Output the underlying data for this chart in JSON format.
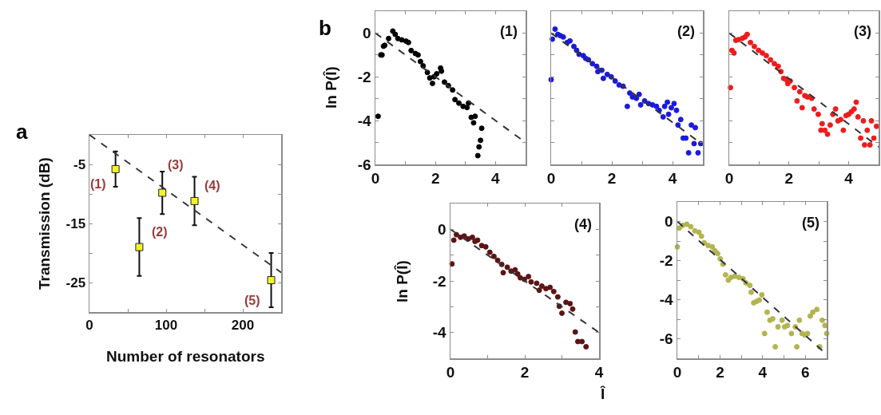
{
  "chart_data": [
    {
      "type": "scatter",
      "title": "a",
      "xlabel": "Number of resonators",
      "ylabel": "Transmission (dB)",
      "xlim": [
        0,
        250
      ],
      "ylim": [
        -30,
        0
      ],
      "xticks": [
        0,
        {
          "value": 50,
          "label": null
        },
        100,
        {
          "value": 150,
          "label": null
        },
        200,
        {
          "value": 250,
          "label": null
        }
      ],
      "yticks": [
        {
          "value": -30,
          "label": null
        },
        -25,
        {
          "value": -20,
          "label": null
        },
        -15,
        {
          "value": -10,
          "label": null
        },
        -5
      ],
      "marker": "square",
      "series": [
        {
          "type": "scatter",
          "color": "#f2f230",
          "x": [
            34,
            65,
            95,
            137,
            237
          ],
          "values": [
            -5.8,
            -19.0,
            -9.8,
            -11.2,
            -24.6
          ],
          "errors": [
            3,
            4.9,
            3.6,
            4.1,
            4.6
          ]
        },
        {
          "type": "line",
          "color": "#333344",
          "line_style": "dashed",
          "marker": "none",
          "x": [
            0,
            250
          ],
          "values": [
            0,
            -23.3
          ]
        }
      ],
      "annotations": [
        "(1)",
        "(2)",
        "(3)",
        "(4)",
        "(5)"
      ]
    },
    {
      "type": "scatter",
      "title": "b",
      "ylabel": "ln P(Î)",
      "xlim": [
        0,
        5
      ],
      "ylim": [
        -6,
        1
      ],
      "xticks": [
        0,
        {
          "value": 1,
          "label": null
        },
        2,
        {
          "value": 3,
          "label": null
        },
        4
      ],
      "yticks": [
        -6,
        {
          "value": -5,
          "label": null
        },
        -4,
        {
          "value": -3,
          "label": null
        },
        -2,
        {
          "value": -1,
          "label": null
        },
        0
      ],
      "marker": "circle",
      "series": [
        {
          "type": "scatter",
          "color": "#000000",
          "x": [
            0.09,
            0.18,
            0.22,
            0.27,
            0.31,
            0.44,
            0.58,
            0.66,
            0.75,
            0.88,
            1.02,
            1.1,
            1.19,
            1.33,
            1.42,
            1.5,
            1.59,
            1.73,
            1.81,
            1.9,
            1.95,
            2.04,
            2.17,
            2.2,
            2.3,
            2.43,
            2.57,
            2.65,
            2.78,
            2.92,
            3.05,
            3.1,
            3.19,
            3.27,
            3.32,
            3.41,
            3.45,
            3.5,
            3.54
          ],
          "values": [
            -3.8,
            -1.0,
            -1.0,
            -0.6,
            -0.56,
            -0.25,
            0.09,
            -0.06,
            -0.25,
            -0.31,
            -0.37,
            -0.43,
            -0.8,
            -0.93,
            -1.0,
            -1.3,
            -1.5,
            -1.8,
            -2.05,
            -2.3,
            -2.0,
            -1.86,
            -1.6,
            -1.74,
            -2.24,
            -2.4,
            -2.6,
            -3.04,
            -3.2,
            -3.35,
            -3.4,
            -3.2,
            -3.85,
            -4.1,
            -3.8,
            -5.6,
            -5.2,
            -4.9,
            -4.35
          ]
        },
        {
          "type": "line",
          "color": "#333333",
          "line_style": "dashed",
          "marker": "none",
          "x": [
            0,
            5
          ],
          "values": [
            0,
            -5
          ]
        }
      ],
      "annotations": [
        "(1)"
      ]
    },
    {
      "type": "scatter",
      "tick_labels": "x",
      "xlim": [
        0,
        5
      ],
      "ylim": [
        -6,
        1
      ],
      "xticks": [
        0,
        {
          "value": 1,
          "label": null
        },
        2,
        {
          "value": 3,
          "label": null
        },
        4
      ],
      "yticks": [
        -6,
        -5,
        -4,
        -3,
        -2,
        -1,
        0
      ],
      "marker": "circle",
      "series": [
        {
          "type": "scatter",
          "color": "#1a1adc",
          "x": [
            0,
            0.04,
            0.13,
            0.22,
            0.31,
            0.4,
            0.53,
            0.62,
            0.75,
            0.84,
            0.92,
            1.06,
            1.14,
            1.23,
            1.36,
            1.5,
            1.54,
            1.67,
            1.72,
            1.85,
            1.98,
            2.11,
            2.24,
            2.37,
            2.51,
            2.59,
            2.68,
            2.81,
            2.9,
            2.95,
            3.08,
            3.21,
            3.34,
            3.47,
            3.56,
            3.69,
            3.74,
            3.83,
            3.87,
            3.96,
            4.05,
            4.13,
            4.18,
            4.27,
            4.35,
            4.44,
            4.53,
            4.62,
            4.71,
            4.75,
            4.84,
            4.93
          ],
          "values": [
            -2.13,
            -0.28,
            0.18,
            -0.06,
            -0.12,
            -0.18,
            -0.43,
            -0.36,
            -0.61,
            -0.79,
            -0.97,
            -1.03,
            -1.16,
            -1.22,
            -1.4,
            -1.52,
            -1.76,
            -1.7,
            -2.07,
            -1.89,
            -2.0,
            -2.19,
            -2.37,
            -2.43,
            -3.35,
            -2.74,
            -2.92,
            -2.98,
            -2.8,
            -3.28,
            -3.1,
            -3.22,
            -3.28,
            -3.35,
            -3.53,
            -3.83,
            -3.35,
            -3.16,
            -3.71,
            -3.41,
            -3.22,
            -3.53,
            -4.2,
            -3.95,
            -4.8,
            -4.8,
            -5.47,
            -4.2,
            -5.05,
            -4.32,
            -5.47,
            -5.05
          ]
        },
        {
          "type": "line",
          "color": "#333333",
          "line_style": "dashed",
          "marker": "none",
          "x": [
            0,
            5
          ],
          "values": [
            0,
            -5.1
          ]
        }
      ],
      "annotations": [
        "(2)"
      ]
    },
    {
      "type": "scatter",
      "tick_labels": "x",
      "xlim": [
        0,
        5
      ],
      "ylim": [
        -6,
        1
      ],
      "xticks": [
        0,
        {
          "value": 1,
          "label": null
        },
        2,
        {
          "value": 3,
          "label": null
        },
        4
      ],
      "yticks": [
        -6,
        -5,
        -4,
        -3,
        -2,
        -1,
        0
      ],
      "marker": "circle",
      "series": [
        {
          "type": "scatter",
          "color": "#ee1c1c",
          "x": [
            0.04,
            0.09,
            0.16,
            0.22,
            0.31,
            0.44,
            0.53,
            0.6,
            0.71,
            0.84,
            0.98,
            1.11,
            1.24,
            1.38,
            1.51,
            1.64,
            1.73,
            1.82,
            1.91,
            1.96,
            2.04,
            2.18,
            2.27,
            2.36,
            2.44,
            2.53,
            2.62,
            2.76,
            2.84,
            2.98,
            3.07,
            3.11,
            3.2,
            3.29,
            3.38,
            3.47,
            3.56,
            3.64,
            3.73,
            3.82,
            3.91,
            4.0,
            4.09,
            4.18,
            4.25,
            4.31,
            4.4,
            4.49,
            4.53,
            4.62,
            4.71,
            4.76,
            4.84,
            4.93
          ],
          "values": [
            -2.49,
            -0.79,
            -0.91,
            -0.33,
            -0.3,
            -0.24,
            -0.18,
            -0.06,
            -0.43,
            -0.61,
            -0.79,
            -0.91,
            -1.03,
            -1.22,
            -1.4,
            -1.52,
            -1.76,
            -2.07,
            -2.13,
            -2.31,
            -2.19,
            -2.49,
            -3.1,
            -2.68,
            -3.41,
            -2.86,
            -2.92,
            -2.98,
            -3.47,
            -3.71,
            -4.44,
            -4.14,
            -4.44,
            -4.62,
            -4.2,
            -3.71,
            -3.47,
            -4.01,
            -3.95,
            -4.44,
            -3.77,
            -3.71,
            -3.59,
            -3.47,
            -3.16,
            -3.83,
            -4.8,
            -4.01,
            -5.11,
            -4.44,
            -5.11,
            -4.01,
            -4.8,
            -4.26
          ]
        },
        {
          "type": "line",
          "color": "#333333",
          "line_style": "dashed",
          "marker": "none",
          "x": [
            0,
            5
          ],
          "values": [
            0,
            -5.2
          ]
        }
      ],
      "annotations": [
        "(3)"
      ]
    },
    {
      "type": "scatter",
      "xlabel": "Î",
      "ylabel": "ln P(Î)",
      "xlim": [
        0,
        4
      ],
      "ylim": [
        -5,
        1
      ],
      "xticks": [
        0,
        {
          "value": 1,
          "label": null
        },
        2,
        {
          "value": 3,
          "label": null
        },
        4
      ],
      "yticks": [
        -4,
        {
          "value": -3,
          "label": null
        },
        -2,
        {
          "value": -1,
          "label": null
        },
        0
      ],
      "marker": "circle",
      "series": [
        {
          "type": "scatter",
          "color": "#5c1414",
          "x": [
            0.04,
            0.09,
            0.16,
            0.27,
            0.37,
            0.48,
            0.59,
            0.66,
            0.73,
            0.84,
            0.95,
            1.06,
            1.17,
            1.27,
            1.38,
            1.42,
            1.53,
            1.63,
            1.74,
            1.81,
            1.88,
            1.99,
            2.1,
            2.17,
            2.32,
            2.39,
            2.46,
            2.57,
            2.68,
            2.78,
            2.89,
            2.93,
            3.0,
            3.11,
            3.22,
            3.29,
            3.36,
            3.43,
            3.54,
            3.65
          ],
          "values": [
            -1.34,
            -0.42,
            -0.21,
            -0.31,
            -0.26,
            -0.37,
            -0.31,
            -0.47,
            -0.42,
            -0.63,
            -0.68,
            -0.89,
            -1.05,
            -1.2,
            -1.36,
            -1.68,
            -1.47,
            -1.62,
            -1.57,
            -1.73,
            -1.88,
            -1.94,
            -1.83,
            -2.04,
            -2.09,
            -2.36,
            -2.2,
            -2.3,
            -2.25,
            -2.41,
            -2.62,
            -2.98,
            -3.25,
            -2.83,
            -2.88,
            -3.09,
            -3.98,
            -4.35,
            -4.35,
            -4.55
          ]
        },
        {
          "type": "line",
          "color": "#333333",
          "line_style": "dashed",
          "marker": "none",
          "x": [
            0,
            4
          ],
          "values": [
            0,
            -4
          ]
        }
      ],
      "annotations": [
        "(4)"
      ]
    },
    {
      "type": "scatter",
      "xlim": [
        0,
        7
      ],
      "ylim": [
        -7,
        1
      ],
      "xticks": [
        0,
        {
          "value": 1,
          "label": null
        },
        2,
        {
          "value": 3,
          "label": null
        },
        4,
        {
          "value": 5,
          "label": null
        },
        6
      ],
      "yticks": [
        -6,
        {
          "value": -5,
          "label": null
        },
        -4,
        {
          "value": -3,
          "label": null
        },
        -2,
        {
          "value": -1,
          "label": null
        },
        0
      ],
      "marker": "circle",
      "series": [
        {
          "type": "scatter",
          "color": "#b4b450",
          "x": [
            0,
            0.09,
            0.25,
            0.44,
            0.63,
            0.82,
            1.01,
            1.13,
            1.26,
            1.45,
            1.64,
            1.76,
            1.89,
            2.01,
            2.14,
            2.26,
            2.39,
            2.52,
            2.7,
            2.89,
            3.08,
            3.21,
            3.4,
            3.46,
            3.58,
            3.71,
            3.84,
            3.96,
            4.09,
            4.21,
            4.34,
            4.47,
            4.59,
            4.72,
            4.91,
            5.03,
            5.16,
            5.35,
            5.53,
            5.6,
            5.72,
            5.85,
            5.97,
            6.1,
            6.23,
            6.35,
            6.54,
            6.67,
            6.79,
            6.92,
            7.0
          ],
          "values": [
            -1.3,
            -0.34,
            -0.2,
            -0.14,
            -0.27,
            -0.48,
            -0.55,
            -0.75,
            -1.09,
            -1.23,
            -1.3,
            -1.5,
            -1.64,
            -1.91,
            -2.18,
            -2.73,
            -3.0,
            -2.86,
            -2.8,
            -2.86,
            -2.93,
            -3.14,
            -3.27,
            -3.62,
            -4.16,
            -4.09,
            -4.02,
            -3.75,
            -5.73,
            -4.64,
            -5.05,
            -4.98,
            -6.41,
            -5.39,
            -5.05,
            -5.39,
            -5.32,
            -5.73,
            -5.39,
            -6.41,
            -5.05,
            -5.73,
            -5.8,
            -5.73,
            -4.84,
            -4.64,
            -4.5,
            -6.41,
            -5.05,
            -5.32,
            -5.73
          ]
        },
        {
          "type": "line",
          "color": "#333344",
          "line_style": "dashed",
          "marker": "none",
          "x": [
            0,
            7
          ],
          "values": [
            0,
            -6.8
          ]
        }
      ],
      "annotations": [
        "(5)"
      ]
    }
  ]
}
